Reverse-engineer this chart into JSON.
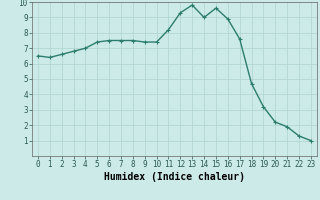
{
  "x": [
    0,
    1,
    2,
    3,
    4,
    5,
    6,
    7,
    8,
    9,
    10,
    11,
    12,
    13,
    14,
    15,
    16,
    17,
    18,
    19,
    20,
    21,
    22,
    23
  ],
  "y": [
    6.5,
    6.4,
    6.6,
    6.8,
    7.0,
    7.4,
    7.5,
    7.5,
    7.5,
    7.4,
    7.4,
    8.2,
    9.3,
    9.8,
    9.0,
    9.6,
    8.9,
    7.6,
    4.7,
    3.2,
    2.2,
    1.9,
    1.3,
    1.0
  ],
  "line_color": "#2d7d6e",
  "marker": "+",
  "marker_size": 3,
  "background_color": "#cceae7",
  "grid_color": "#b0d4d0",
  "xlabel": "Humidex (Indice chaleur)",
  "ylim": [
    0,
    10
  ],
  "xlim": [
    -0.5,
    23.5
  ],
  "yticks": [
    1,
    2,
    3,
    4,
    5,
    6,
    7,
    8,
    9,
    10
  ],
  "xticks": [
    0,
    1,
    2,
    3,
    4,
    5,
    6,
    7,
    8,
    9,
    10,
    11,
    12,
    13,
    14,
    15,
    16,
    17,
    18,
    19,
    20,
    21,
    22,
    23
  ],
  "tick_label_fontsize": 5.5,
  "xlabel_fontsize": 7,
  "line_width": 1.0,
  "marker_edge_width": 0.8
}
